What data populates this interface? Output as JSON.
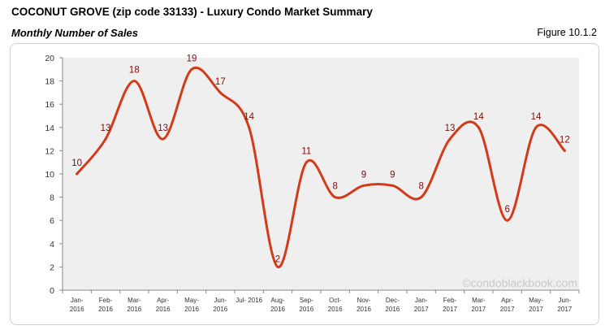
{
  "header": {
    "title": "COCONUT GROVE (zip code 33133) - Luxury Condo Market Summary",
    "subtitle": "Monthly Number of Sales",
    "figure_label": "Figure 10.1.2"
  },
  "watermark": "©condoblackbook.com",
  "colors": {
    "line": "#d33a1a",
    "plot_bg": "#efefef",
    "data_label": "#7a0f0f"
  },
  "chart_data": {
    "type": "line",
    "title": "Monthly Number of Sales",
    "xlabel": "",
    "ylabel": "",
    "ylim": [
      0,
      20
    ],
    "y_ticks": [
      0,
      2,
      4,
      6,
      8,
      10,
      12,
      14,
      16,
      18,
      20
    ],
    "grid": false,
    "legend": "none",
    "categories": [
      [
        "Jan-",
        "2016"
      ],
      [
        "Feb-",
        "2016"
      ],
      [
        "Mar-",
        "2016"
      ],
      [
        "Apr-",
        "2016"
      ],
      [
        "May-",
        "2016"
      ],
      [
        "Jun-",
        "2016"
      ],
      [
        "Jul- 2016",
        ""
      ],
      [
        "Aug-",
        "2016"
      ],
      [
        "Sep-",
        "2016"
      ],
      [
        "Oct-",
        "2016"
      ],
      [
        "Nov-",
        "2016"
      ],
      [
        "Dec-",
        "2016"
      ],
      [
        "Jan-",
        "2017"
      ],
      [
        "Feb-",
        "2017"
      ],
      [
        "Mar-",
        "2017"
      ],
      [
        "Apr-",
        "2017"
      ],
      [
        "May-",
        "2017"
      ],
      [
        "Jun-",
        "2017"
      ]
    ],
    "series": [
      {
        "values": [
          10,
          13,
          18,
          13,
          19,
          17,
          14,
          2,
          11,
          8,
          9,
          9,
          8,
          13,
          14,
          6,
          14,
          12
        ]
      }
    ]
  }
}
